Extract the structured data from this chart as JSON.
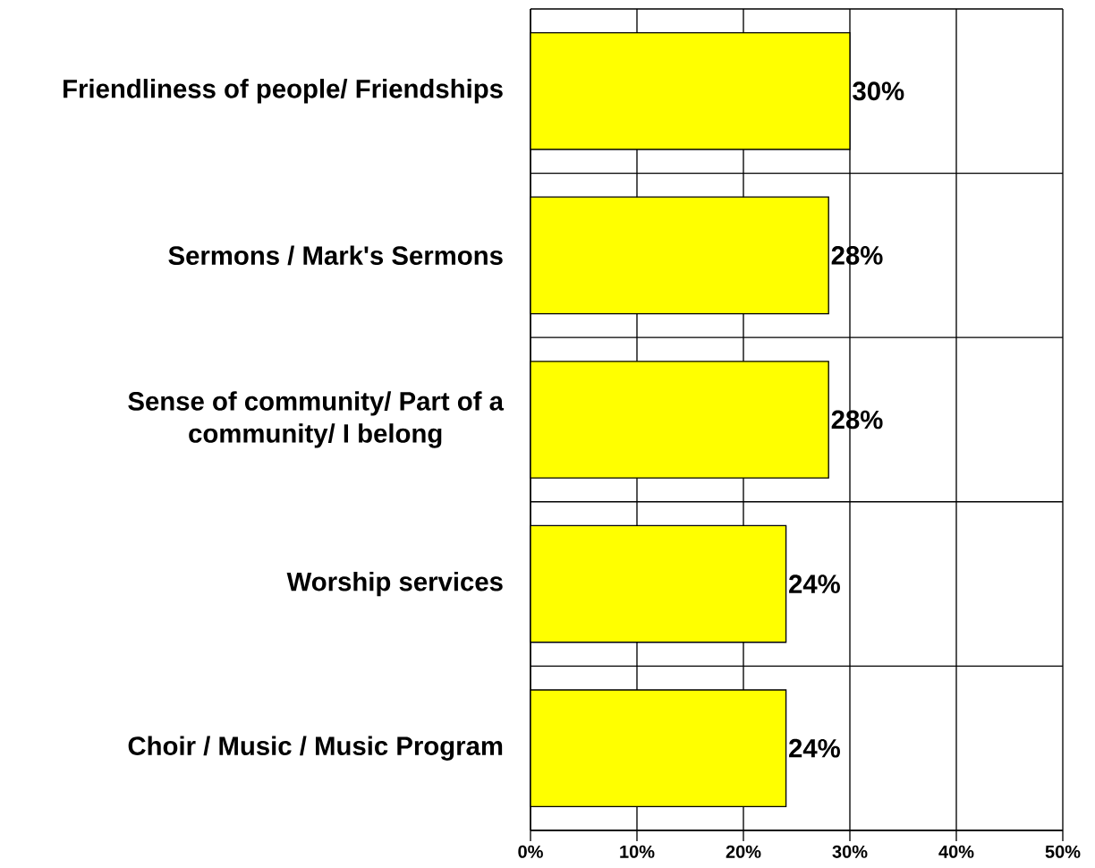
{
  "chart_data": {
    "type": "bar",
    "orientation": "horizontal",
    "categories": [
      "Friendliness of people/ Friendships",
      "Sermons / Mark's Sermons",
      "Sense of community/ Part of a community/ I belong",
      "Worship services",
      "Choir / Music / Music Program"
    ],
    "values": [
      30,
      28,
      28,
      24,
      24
    ],
    "value_labels": [
      "30%",
      "28%",
      "28%",
      "24%",
      "24%"
    ],
    "color": "#ffff00",
    "xlim": [
      0,
      50
    ],
    "xticks": [
      {
        "value": 0,
        "label": "0%"
      },
      {
        "value": 10,
        "label": "10%"
      },
      {
        "value": 20,
        "label": "20%"
      },
      {
        "value": 30,
        "label": "30%"
      },
      {
        "value": 40,
        "label": "40%"
      },
      {
        "value": 50,
        "label": "50%"
      }
    ],
    "grid": true
  }
}
